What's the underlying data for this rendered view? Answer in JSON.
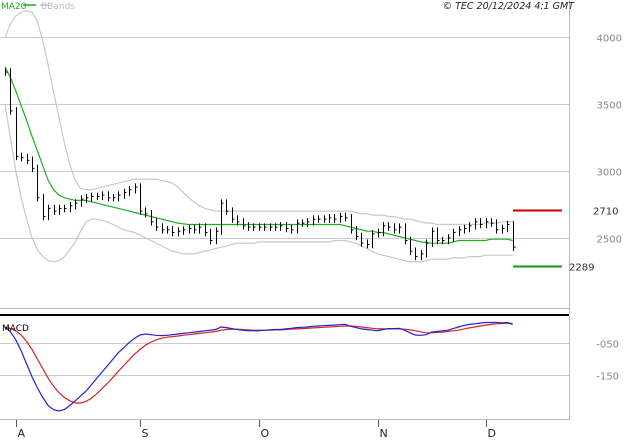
{
  "header": {
    "legend_ma": "MA20",
    "legend_bb": "BBands",
    "copyright": "© TEC 20/12/2024 4:1 GMT"
  },
  "colors": {
    "ma": "#22aa22",
    "bands": "#c8c8c8",
    "price": "#000000",
    "macd": "#2222cc",
    "signal": "#dd2222",
    "resistance": "#cc0000",
    "support": "#119911",
    "grid": "#cccccc"
  },
  "chart_data": [
    {
      "type": "line",
      "title": "",
      "y_ticks": [
        {
          "value": 4000,
          "label": "4000"
        },
        {
          "value": 3500,
          "label": "3500"
        },
        {
          "value": 3000,
          "label": "3000"
        },
        {
          "value": 2500,
          "label": "2500"
        }
      ],
      "ylim": [
        1960,
        4280
      ],
      "x_months": [
        {
          "label": "A",
          "index": 2
        },
        {
          "label": "S",
          "index": 25
        },
        {
          "label": "O",
          "index": 47
        },
        {
          "label": "N",
          "index": 69
        },
        {
          "label": "D",
          "index": 89
        }
      ],
      "levels": [
        {
          "name": "resistance",
          "value": 2710,
          "label": "2710"
        },
        {
          "name": "support",
          "value": 2289,
          "label": "2289"
        }
      ],
      "price": [
        3740,
        3450,
        3110,
        3100,
        3080,
        3020,
        2800,
        2660,
        2720,
        2700,
        2720,
        2720,
        2740,
        2760,
        2790,
        2800,
        2810,
        2810,
        2820,
        2800,
        2800,
        2820,
        2840,
        2860,
        2880,
        2700,
        2680,
        2620,
        2580,
        2560,
        2560,
        2540,
        2550,
        2560,
        2570,
        2560,
        2580,
        2540,
        2480,
        2550,
        2760,
        2700,
        2640,
        2620,
        2590,
        2580,
        2580,
        2580,
        2580,
        2580,
        2580,
        2590,
        2570,
        2560,
        2610,
        2610,
        2620,
        2640,
        2640,
        2640,
        2650,
        2640,
        2660,
        2650,
        2560,
        2510,
        2460,
        2450,
        2530,
        2540,
        2590,
        2580,
        2560,
        2580,
        2480,
        2400,
        2360,
        2380,
        2460,
        2550,
        2480,
        2480,
        2500,
        2540,
        2560,
        2570,
        2590,
        2620,
        2600,
        2620,
        2610,
        2560,
        2570,
        2600,
        2430
      ],
      "ma20": [
        3780,
        3700,
        3600,
        3490,
        3380,
        3260,
        3150,
        3040,
        2930,
        2860,
        2820,
        2800,
        2790,
        2780,
        2780,
        2780,
        2770,
        2760,
        2750,
        2740,
        2730,
        2720,
        2710,
        2700,
        2690,
        2680,
        2670,
        2660,
        2650,
        2640,
        2630,
        2620,
        2610,
        2605,
        2600,
        2600,
        2600,
        2600,
        2600,
        2600,
        2600,
        2600,
        2600,
        2600,
        2600,
        2600,
        2600,
        2600,
        2600,
        2600,
        2600,
        2600,
        2600,
        2600,
        2600,
        2600,
        2600,
        2600,
        2600,
        2600,
        2600,
        2600,
        2600,
        2590,
        2580,
        2570,
        2560,
        2550,
        2550,
        2540,
        2540,
        2530,
        2520,
        2510,
        2500,
        2490,
        2480,
        2470,
        2465,
        2460,
        2460,
        2460,
        2460,
        2470,
        2480,
        2480,
        2480,
        2480,
        2480,
        2480,
        2490,
        2490,
        2490,
        2490,
        2480
      ],
      "bb_upper": [
        4000,
        4100,
        4160,
        4190,
        4200,
        4190,
        4120,
        3970,
        3790,
        3590,
        3400,
        3210,
        3050,
        2930,
        2870,
        2860,
        2860,
        2870,
        2880,
        2890,
        2900,
        2910,
        2920,
        2930,
        2940,
        2940,
        2940,
        2940,
        2940,
        2930,
        2920,
        2910,
        2880,
        2840,
        2800,
        2770,
        2740,
        2720,
        2710,
        2700,
        2700,
        2700,
        2700,
        2700,
        2700,
        2700,
        2700,
        2700,
        2700,
        2700,
        2700,
        2700,
        2700,
        2700,
        2700,
        2700,
        2700,
        2700,
        2700,
        2700,
        2700,
        2700,
        2700,
        2700,
        2700,
        2690,
        2680,
        2680,
        2670,
        2670,
        2670,
        2660,
        2660,
        2650,
        2640,
        2640,
        2630,
        2620,
        2610,
        2610,
        2600,
        2600,
        2600,
        2600,
        2600,
        2600,
        2600,
        2600,
        2600,
        2610,
        2610,
        2610,
        2620,
        2620,
        2620
      ],
      "bb_lower": [
        3500,
        3250,
        3000,
        2800,
        2640,
        2500,
        2410,
        2360,
        2330,
        2320,
        2330,
        2360,
        2410,
        2470,
        2550,
        2620,
        2640,
        2640,
        2630,
        2620,
        2600,
        2580,
        2560,
        2550,
        2540,
        2520,
        2500,
        2480,
        2460,
        2440,
        2420,
        2400,
        2390,
        2380,
        2380,
        2380,
        2390,
        2400,
        2410,
        2420,
        2430,
        2440,
        2450,
        2460,
        2460,
        2460,
        2460,
        2470,
        2470,
        2470,
        2470,
        2470,
        2470,
        2470,
        2470,
        2470,
        2470,
        2470,
        2470,
        2470,
        2470,
        2480,
        2480,
        2480,
        2470,
        2460,
        2440,
        2420,
        2400,
        2380,
        2370,
        2360,
        2350,
        2340,
        2330,
        2320,
        2320,
        2320,
        2330,
        2340,
        2340,
        2340,
        2340,
        2350,
        2350,
        2350,
        2360,
        2360,
        2360,
        2370,
        2370,
        2370,
        2370,
        2370,
        2370
      ]
    },
    {
      "type": "line",
      "title": "MACD",
      "y_ticks": [
        {
          "value": -50,
          "label": "-050"
        },
        {
          "value": -150,
          "label": "-150"
        }
      ],
      "ylim": [
        -290,
        28
      ],
      "series": [
        {
          "name": "MACD",
          "color_key": "macd"
        },
        {
          "name": "Signal",
          "color_key": "signal"
        }
      ],
      "macd": [
        0,
        -15,
        -40,
        -75,
        -115,
        -155,
        -190,
        -220,
        -245,
        -258,
        -262,
        -257,
        -245,
        -230,
        -215,
        -200,
        -180,
        -160,
        -140,
        -120,
        -100,
        -80,
        -65,
        -48,
        -35,
        -25,
        -22,
        -24,
        -26,
        -27,
        -26,
        -24,
        -22,
        -20,
        -18,
        -16,
        -14,
        -12,
        -10,
        -8,
        0,
        -2,
        -5,
        -8,
        -10,
        -12,
        -12,
        -12,
        -10,
        -9,
        -8,
        -8,
        -6,
        -4,
        -2,
        -1,
        0,
        2,
        3,
        4,
        5,
        6,
        7,
        8,
        2,
        -2,
        -6,
        -8,
        -10,
        -12,
        -8,
        -5,
        -5,
        -4,
        -10,
        -18,
        -25,
        -26,
        -24,
        -16,
        -14,
        -12,
        -10,
        -5,
        0,
        5,
        8,
        10,
        12,
        14,
        14,
        14,
        13,
        14,
        8
      ],
      "signal": [
        0,
        -5,
        -12,
        -25,
        -45,
        -70,
        -100,
        -130,
        -160,
        -185,
        -205,
        -220,
        -230,
        -237,
        -237,
        -232,
        -222,
        -208,
        -192,
        -175,
        -157,
        -138,
        -120,
        -102,
        -85,
        -70,
        -57,
        -47,
        -40,
        -35,
        -32,
        -30,
        -28,
        -26,
        -24,
        -22,
        -20,
        -18,
        -16,
        -14,
        -10,
        -8,
        -7,
        -7,
        -8,
        -9,
        -10,
        -10,
        -10,
        -10,
        -9,
        -9,
        -8,
        -7,
        -6,
        -5,
        -4,
        -3,
        -2,
        -1,
        0,
        1,
        2,
        3,
        3,
        2,
        0,
        -2,
        -4,
        -6,
        -6,
        -6,
        -6,
        -6,
        -7,
        -9,
        -12,
        -15,
        -18,
        -18,
        -17,
        -16,
        -14,
        -12,
        -10,
        -6,
        -3,
        0,
        3,
        6,
        8,
        10,
        11,
        12,
        11
      ]
    }
  ]
}
